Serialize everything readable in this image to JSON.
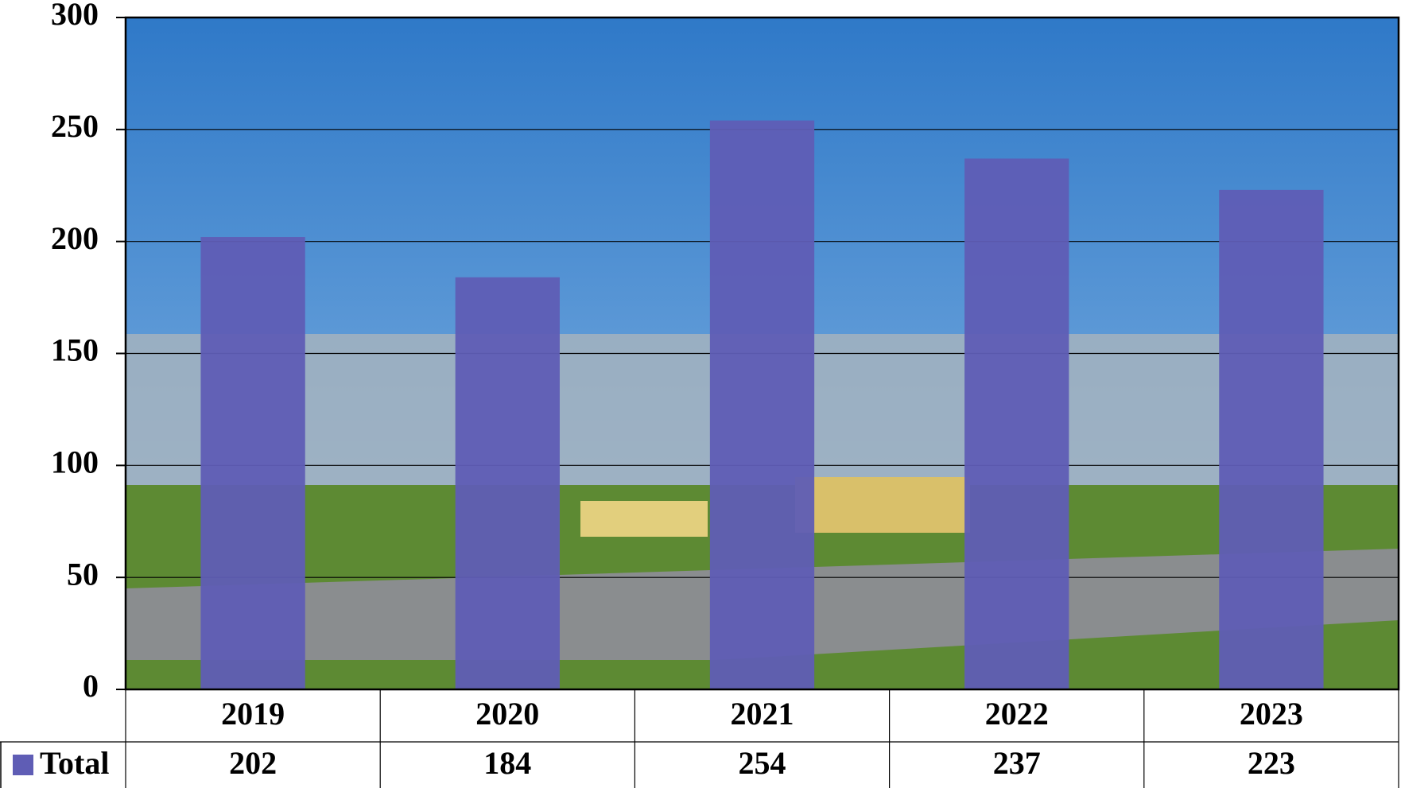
{
  "chart_data": {
    "type": "bar",
    "categories": [
      "2019",
      "2020",
      "2021",
      "2022",
      "2023"
    ],
    "series": [
      {
        "name": "Total",
        "color": "#5f5db5",
        "values": [
          202,
          184,
          254,
          237,
          223
        ]
      }
    ],
    "ylim": [
      0,
      300
    ],
    "yticks": [
      0,
      50,
      100,
      150,
      200,
      250,
      300
    ],
    "grid": true
  }
}
